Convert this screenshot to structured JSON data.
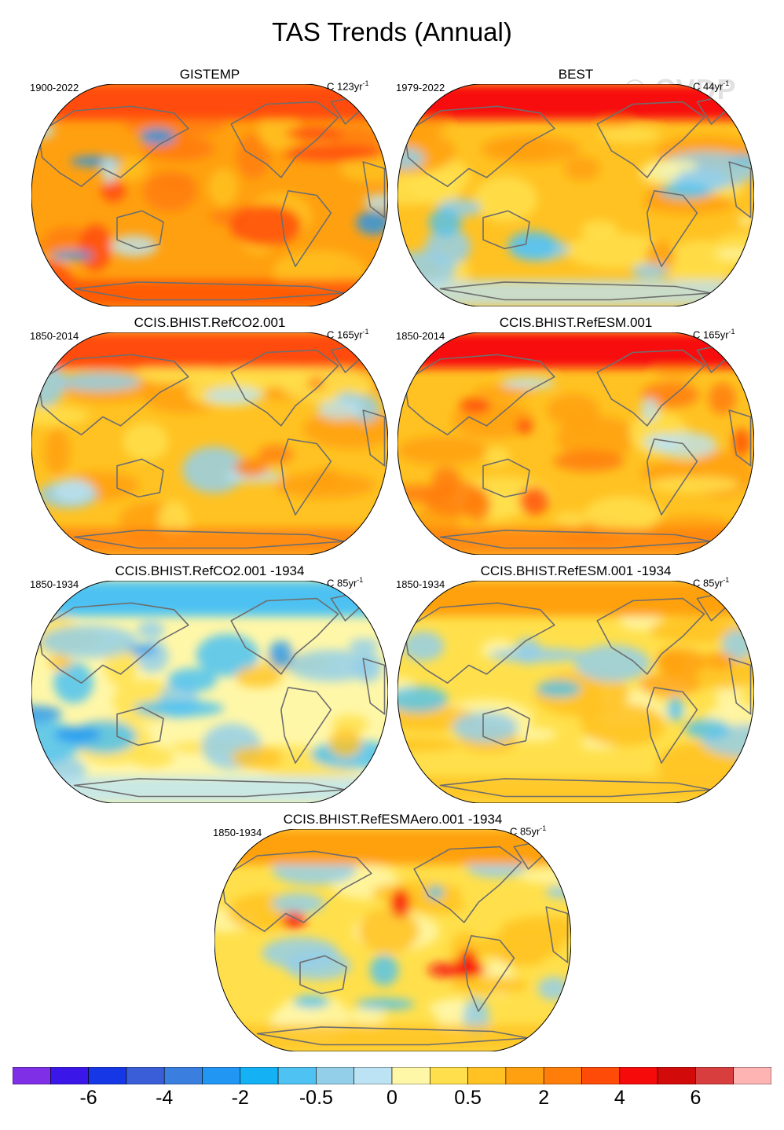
{
  "figure": {
    "title": "TAS Trends (Annual)",
    "watermark": "© CVDP"
  },
  "panels": [
    {
      "name": "GISTEMP",
      "period": "1900-2022",
      "scale_unit": "C",
      "scale_value": "123yr",
      "scale_exp": "-1",
      "style": "obs1"
    },
    {
      "name": "BEST",
      "period": "1979-2022",
      "scale_unit": "C",
      "scale_value": "44yr",
      "scale_exp": "-1",
      "style": "obs2"
    },
    {
      "name": "CCIS.BHIST.RefCO2.001",
      "period": "1850-2014",
      "scale_unit": "C",
      "scale_value": "165yr",
      "scale_exp": "-1",
      "style": "mod_warm"
    },
    {
      "name": "CCIS.BHIST.RefESM.001",
      "period": "1850-2014",
      "scale_unit": "C",
      "scale_value": "165yr",
      "scale_exp": "-1",
      "style": "mod_warmer"
    },
    {
      "name": "CCIS.BHIST.RefCO2.001 -1934",
      "period": "1850-1934",
      "scale_unit": "C",
      "scale_value": "85yr",
      "scale_exp": "-1",
      "style": "early_cool"
    },
    {
      "name": "CCIS.BHIST.RefESM.001 -1934",
      "period": "1850-1934",
      "scale_unit": "C",
      "scale_value": "85yr",
      "scale_exp": "-1",
      "style": "early_mixed"
    },
    {
      "name": "CCIS.BHIST.RefESMAero.001 -1934",
      "period": "1850-1934",
      "scale_unit": "C",
      "scale_value": "85yr",
      "scale_exp": "-1",
      "style": "early_aero"
    }
  ],
  "chart_data": {
    "type": "heatmap",
    "title": "TAS Trends (Annual)",
    "projection": "Robinson global map",
    "colorbar": {
      "colors": [
        "#7f2fe6",
        "#3a17e8",
        "#1537e6",
        "#3a5ed8",
        "#3a7fe0",
        "#2296f3",
        "#14b2f5",
        "#4ec2f2",
        "#94cfea",
        "#bce3f3",
        "#fff7a8",
        "#ffe04c",
        "#ffc222",
        "#ffa010",
        "#ff7e0a",
        "#ff4b08",
        "#f70a0a",
        "#d20a0a",
        "#d83e3e",
        "#ffb4b4"
      ],
      "tick_labels": [
        "-6",
        "-4",
        "-2",
        "-0.5",
        "0",
        "0.5",
        "2",
        "4",
        "6"
      ]
    }
  }
}
